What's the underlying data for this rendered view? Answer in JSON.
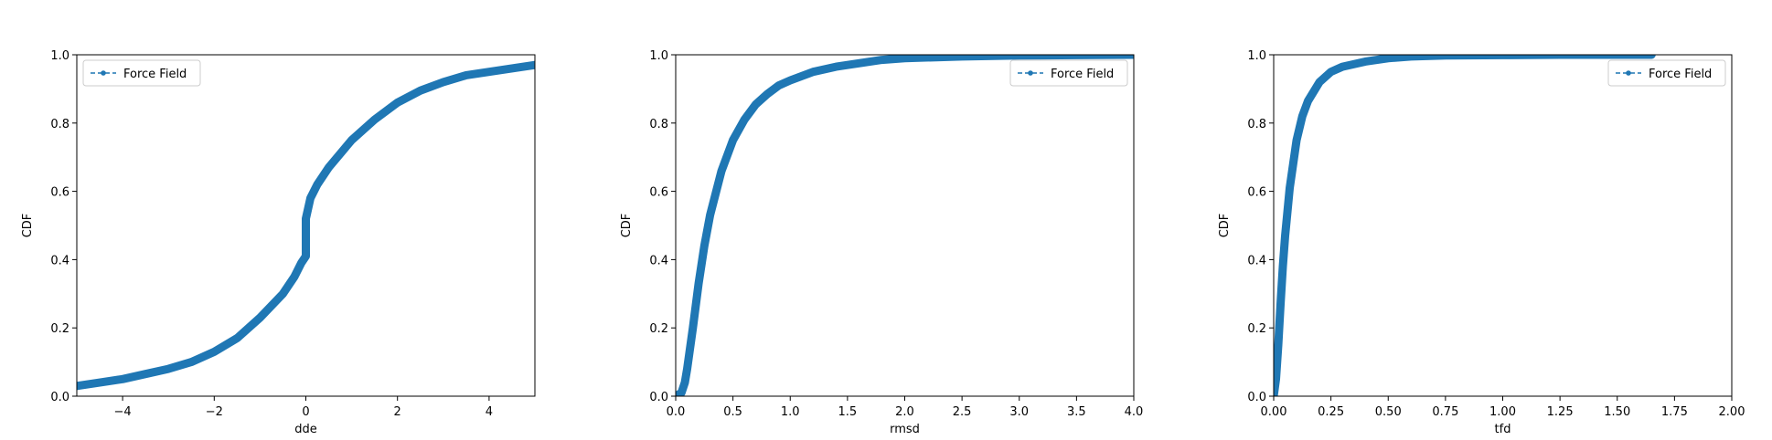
{
  "colors": {
    "series": "#1f77b4",
    "axes": "#000000",
    "legend_border": "#cccccc",
    "background": "#ffffff"
  },
  "chart_data": [
    {
      "type": "line",
      "xlabel": "dde",
      "ylabel": "CDF",
      "xlim": [
        -5,
        5
      ],
      "ylim": [
        0,
        1
      ],
      "xticks": [
        -4,
        -2,
        0,
        2,
        4
      ],
      "xtick_labels": [
        "−4",
        "−2",
        "0",
        "2",
        "4"
      ],
      "yticks": [
        0,
        0.2,
        0.4,
        0.6,
        0.8,
        1.0
      ],
      "ytick_labels": [
        "0.0",
        "0.2",
        "0.4",
        "0.6",
        "0.8",
        "1.0"
      ],
      "legend": "upper-left",
      "grid": false,
      "series": [
        {
          "name": "Force Field",
          "x": [
            -5,
            -4.5,
            -4,
            -3.5,
            -3,
            -2.5,
            -2,
            -1.5,
            -1,
            -0.5,
            -0.25,
            -0.1,
            0,
            0,
            0.1,
            0.25,
            0.5,
            1,
            1.5,
            2,
            2.5,
            3,
            3.5,
            4,
            4.5,
            5
          ],
          "y": [
            0.03,
            0.04,
            0.05,
            0.065,
            0.08,
            0.1,
            0.13,
            0.17,
            0.23,
            0.3,
            0.35,
            0.39,
            0.41,
            0.52,
            0.58,
            0.62,
            0.67,
            0.75,
            0.81,
            0.86,
            0.895,
            0.92,
            0.94,
            0.95,
            0.96,
            0.97
          ]
        }
      ]
    },
    {
      "type": "line",
      "xlabel": "rmsd",
      "ylabel": "CDF",
      "xlim": [
        0,
        4
      ],
      "ylim": [
        0,
        1
      ],
      "xticks": [
        0,
        0.5,
        1,
        1.5,
        2,
        2.5,
        3,
        3.5,
        4
      ],
      "xtick_labels": [
        "0.0",
        "0.5",
        "1.0",
        "1.5",
        "2.0",
        "2.5",
        "3.0",
        "3.5",
        "4.0"
      ],
      "yticks": [
        0,
        0.2,
        0.4,
        0.6,
        0.8,
        1.0
      ],
      "ytick_labels": [
        "0.0",
        "0.2",
        "0.4",
        "0.6",
        "0.8",
        "1.0"
      ],
      "legend": "upper-right",
      "grid": false,
      "series": [
        {
          "name": "Force Field",
          "x": [
            0,
            0.05,
            0.08,
            0.1,
            0.15,
            0.2,
            0.25,
            0.3,
            0.4,
            0.5,
            0.6,
            0.7,
            0.8,
            0.9,
            1.0,
            1.2,
            1.4,
            1.6,
            1.8,
            2.0,
            2.5,
            3.0,
            3.5,
            4.0
          ],
          "y": [
            0,
            0.01,
            0.04,
            0.08,
            0.2,
            0.33,
            0.44,
            0.53,
            0.66,
            0.75,
            0.81,
            0.855,
            0.885,
            0.91,
            0.925,
            0.95,
            0.965,
            0.975,
            0.985,
            0.99,
            0.995,
            0.998,
            0.999,
            1.0
          ]
        }
      ]
    },
    {
      "type": "line",
      "xlabel": "tfd",
      "ylabel": "CDF",
      "xlim": [
        0,
        2
      ],
      "ylim": [
        0,
        1
      ],
      "xticks": [
        0,
        0.25,
        0.5,
        0.75,
        1.0,
        1.25,
        1.5,
        1.75,
        2.0
      ],
      "xtick_labels": [
        "0.00",
        "0.25",
        "0.50",
        "0.75",
        "1.00",
        "1.25",
        "1.50",
        "1.75",
        "2.00"
      ],
      "yticks": [
        0,
        0.2,
        0.4,
        0.6,
        0.8,
        1.0
      ],
      "ytick_labels": [
        "0.0",
        "0.2",
        "0.4",
        "0.6",
        "0.8",
        "1.0"
      ],
      "legend": "upper-right",
      "grid": false,
      "series": [
        {
          "name": "Force Field",
          "x": [
            0,
            0.01,
            0.02,
            0.03,
            0.04,
            0.05,
            0.07,
            0.1,
            0.125,
            0.15,
            0.2,
            0.25,
            0.3,
            0.4,
            0.5,
            0.6,
            0.75,
            1.0,
            1.25,
            1.5,
            1.65
          ],
          "y": [
            0,
            0.05,
            0.15,
            0.27,
            0.38,
            0.47,
            0.61,
            0.75,
            0.82,
            0.865,
            0.92,
            0.95,
            0.965,
            0.98,
            0.99,
            0.995,
            0.998,
            0.999,
            1.0,
            1.0,
            1.0
          ]
        }
      ]
    }
  ]
}
